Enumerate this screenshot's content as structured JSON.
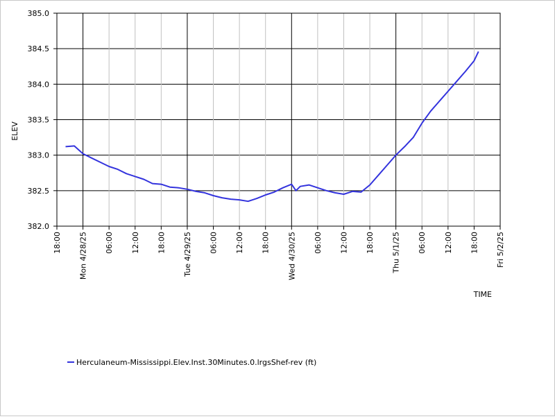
{
  "colors": {
    "series": "#3333dd",
    "major_grid": "#000000",
    "minor_grid": "#c0c0c0",
    "axis": "#000000",
    "background": "#ffffff"
  },
  "chart_data": {
    "type": "line",
    "title": "",
    "xlabel": "TIME",
    "ylabel": "ELEV",
    "ylim": [
      382.0,
      385.0
    ],
    "xlim": [
      "2025-04-27 18:00",
      "2025-05-02 00:00"
    ],
    "grid": true,
    "legend_position": "bottom-left",
    "y_ticks": [
      {
        "value": 382.0,
        "label": "382.0"
      },
      {
        "value": 382.5,
        "label": "382.5"
      },
      {
        "value": 383.0,
        "label": "383.0"
      },
      {
        "value": 383.5,
        "label": "383.5"
      },
      {
        "value": 384.0,
        "label": "384.0"
      },
      {
        "value": 384.5,
        "label": "384.5"
      },
      {
        "value": 385.0,
        "label": "385.0"
      }
    ],
    "x_ticks": [
      {
        "t": "2025-04-27 18:00",
        "label": "18:00",
        "major": false
      },
      {
        "t": "2025-04-28 00:00",
        "label": "Mon 4/28/25",
        "major": true
      },
      {
        "t": "2025-04-28 06:00",
        "label": "06:00",
        "major": false
      },
      {
        "t": "2025-04-28 12:00",
        "label": "12:00",
        "major": false
      },
      {
        "t": "2025-04-28 18:00",
        "label": "18:00",
        "major": false
      },
      {
        "t": "2025-04-29 00:00",
        "label": "Tue 4/29/25",
        "major": true
      },
      {
        "t": "2025-04-29 06:00",
        "label": "06:00",
        "major": false
      },
      {
        "t": "2025-04-29 12:00",
        "label": "12:00",
        "major": false
      },
      {
        "t": "2025-04-29 18:00",
        "label": "18:00",
        "major": false
      },
      {
        "t": "2025-04-30 00:00",
        "label": "Wed 4/30/25",
        "major": true
      },
      {
        "t": "2025-04-30 06:00",
        "label": "06:00",
        "major": false
      },
      {
        "t": "2025-04-30 12:00",
        "label": "12:00",
        "major": false
      },
      {
        "t": "2025-04-30 18:00",
        "label": "18:00",
        "major": false
      },
      {
        "t": "2025-05-01 00:00",
        "label": "Thu 5/1/25",
        "major": true
      },
      {
        "t": "2025-05-01 06:00",
        "label": "06:00",
        "major": false
      },
      {
        "t": "2025-05-01 12:00",
        "label": "12:00",
        "major": false
      },
      {
        "t": "2025-05-01 18:00",
        "label": "18:00",
        "major": false
      },
      {
        "t": "2025-05-02 00:00",
        "label": "Fri 5/2/25",
        "major": true
      }
    ],
    "series": [
      {
        "name": "Herculaneum-Mississippi.Elev.Inst.30Minutes.0.lrgsShef-rev (ft)",
        "points": [
          [
            "2025-04-27 20:00",
            383.12
          ],
          [
            "2025-04-27 22:00",
            383.13
          ],
          [
            "2025-04-28 00:00",
            383.02
          ],
          [
            "2025-04-28 02:00",
            382.96
          ],
          [
            "2025-04-28 04:00",
            382.9
          ],
          [
            "2025-04-28 06:00",
            382.84
          ],
          [
            "2025-04-28 08:00",
            382.8
          ],
          [
            "2025-04-28 10:00",
            382.74
          ],
          [
            "2025-04-28 12:00",
            382.7
          ],
          [
            "2025-04-28 14:00",
            382.66
          ],
          [
            "2025-04-28 16:00",
            382.6
          ],
          [
            "2025-04-28 18:00",
            382.59
          ],
          [
            "2025-04-28 20:00",
            382.55
          ],
          [
            "2025-04-28 22:00",
            382.54
          ],
          [
            "2025-04-29 00:00",
            382.52
          ],
          [
            "2025-04-29 02:00",
            382.49
          ],
          [
            "2025-04-29 04:00",
            382.47
          ],
          [
            "2025-04-29 06:00",
            382.43
          ],
          [
            "2025-04-29 08:00",
            382.4
          ],
          [
            "2025-04-29 10:00",
            382.38
          ],
          [
            "2025-04-29 12:00",
            382.37
          ],
          [
            "2025-04-29 14:00",
            382.35
          ],
          [
            "2025-04-29 16:00",
            382.39
          ],
          [
            "2025-04-29 18:00",
            382.44
          ],
          [
            "2025-04-29 20:00",
            382.48
          ],
          [
            "2025-04-29 22:00",
            382.54
          ],
          [
            "2025-04-30 00:00",
            382.59
          ],
          [
            "2025-04-30 01:00",
            382.5
          ],
          [
            "2025-04-30 02:00",
            382.56
          ],
          [
            "2025-04-30 04:00",
            382.58
          ],
          [
            "2025-04-30 06:00",
            382.54
          ],
          [
            "2025-04-30 08:00",
            382.5
          ],
          [
            "2025-04-30 10:00",
            382.47
          ],
          [
            "2025-04-30 12:00",
            382.45
          ],
          [
            "2025-04-30 14:00",
            382.49
          ],
          [
            "2025-04-30 16:00",
            382.48
          ],
          [
            "2025-04-30 18:00",
            382.58
          ],
          [
            "2025-04-30 20:00",
            382.72
          ],
          [
            "2025-04-30 22:00",
            382.86
          ],
          [
            "2025-05-01 00:00",
            383.0
          ],
          [
            "2025-05-01 02:00",
            383.12
          ],
          [
            "2025-05-01 04:00",
            383.25
          ],
          [
            "2025-05-01 06:00",
            383.45
          ],
          [
            "2025-05-01 08:00",
            383.62
          ],
          [
            "2025-05-01 10:00",
            383.76
          ],
          [
            "2025-05-01 12:00",
            383.9
          ],
          [
            "2025-05-01 14:00",
            384.04
          ],
          [
            "2025-05-01 16:00",
            384.18
          ],
          [
            "2025-05-01 18:00",
            384.33
          ],
          [
            "2025-05-01 19:00",
            384.46
          ]
        ]
      }
    ]
  }
}
